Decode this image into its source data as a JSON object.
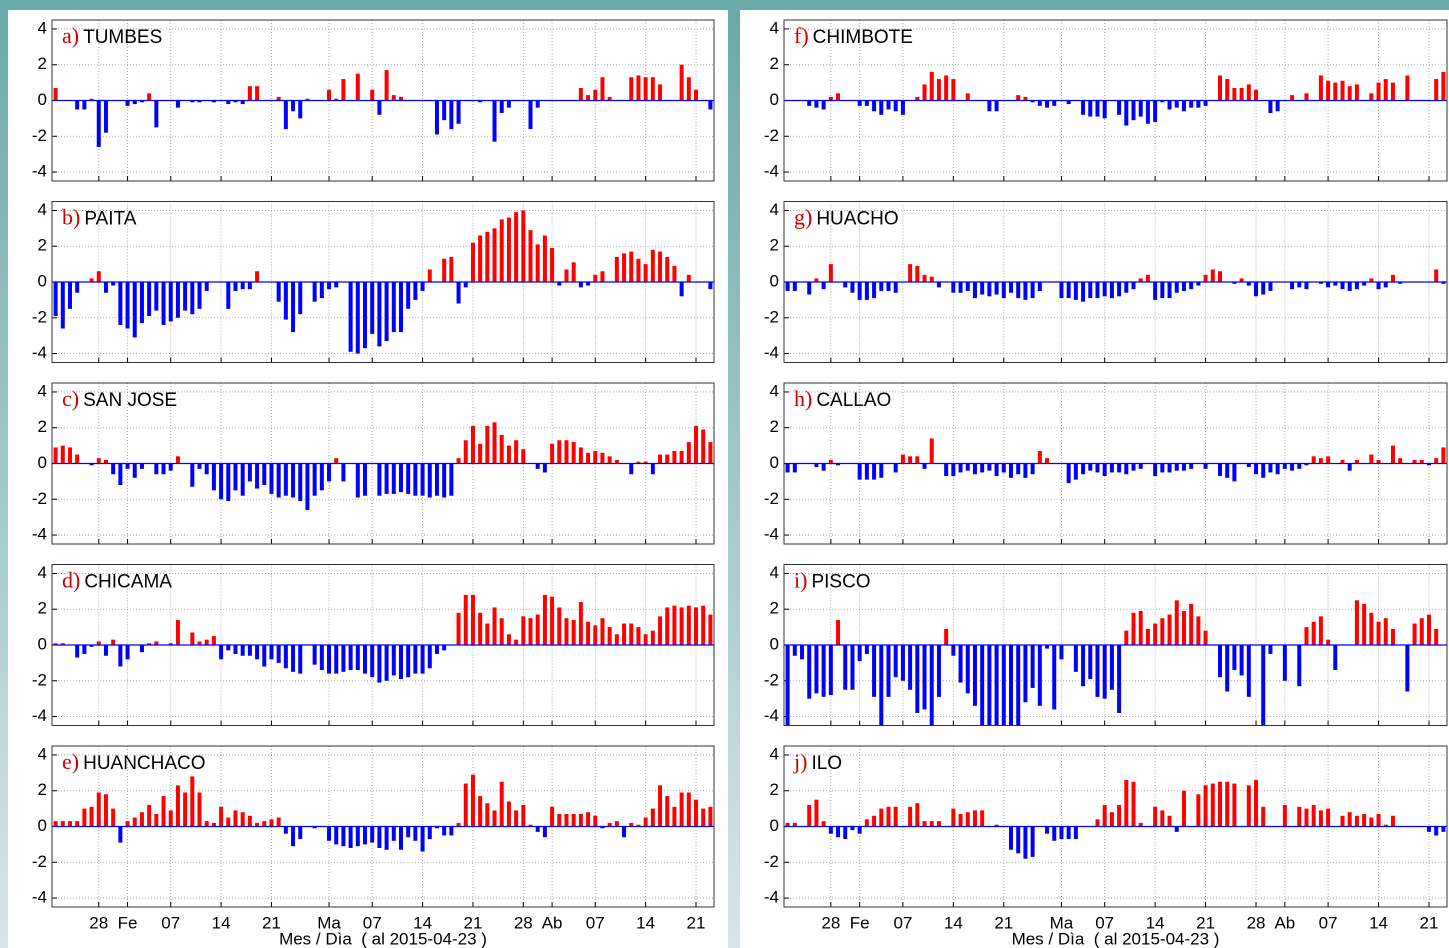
{
  "chart_data": [
    {
      "type": "bar",
      "panel_label": "a)",
      "title": "TUMBES",
      "ylim": [
        -4.5,
        4.5
      ],
      "yticks": [
        -4,
        -2,
        0,
        2,
        4
      ],
      "grid": true,
      "positive_color": "#ff0000",
      "negative_color": "#0000ff",
      "values": [
        0.7,
        0,
        0,
        -0.5,
        -0.5,
        0.1,
        -2.6,
        -1.8,
        0,
        0,
        -0.3,
        -0.2,
        -0.1,
        0.4,
        -1.5,
        0,
        0,
        -0.4,
        0,
        -0.1,
        -0.1,
        0,
        -0.1,
        0,
        -0.2,
        -0.1,
        -0.2,
        0.8,
        0.8,
        0,
        0,
        0.2,
        -1.6,
        -0.6,
        -1.0,
        0.1,
        0,
        0,
        0.6,
        0.1,
        1.2,
        0,
        1.5,
        0,
        0.6,
        -0.8,
        1.7,
        0.3,
        0.2,
        0,
        0,
        0,
        0,
        -1.9,
        -1.1,
        -1.6,
        -1.3,
        0,
        0,
        -0.1,
        0,
        -2.3,
        -0.7,
        -0.4,
        0,
        0,
        -1.6,
        -0.4,
        0,
        0,
        0,
        0,
        0,
        0.7,
        0.3,
        0.6,
        1.3,
        0.2,
        0,
        0,
        1.3,
        1.4,
        1.3,
        1.3,
        0.9,
        0,
        0,
        2.0,
        1.3,
        0.6,
        0,
        -0.5
      ]
    },
    {
      "type": "bar",
      "panel_label": "b)",
      "title": "PAITA",
      "ylim": [
        -4.5,
        4.5
      ],
      "yticks": [
        -4,
        -2,
        0,
        2,
        4
      ],
      "grid": true,
      "positive_color": "#ff0000",
      "negative_color": "#0000ff",
      "values": [
        -1.9,
        -2.6,
        -1.5,
        -0.6,
        0,
        0.2,
        0.6,
        -0.6,
        -0.2,
        -2.4,
        -2.6,
        -3.1,
        -2.3,
        -1.9,
        -1.6,
        -2.4,
        -2.2,
        -2.0,
        -1.6,
        -1.8,
        -1.5,
        -0.5,
        0,
        0,
        -1.5,
        -0.5,
        -0.4,
        -0.4,
        0.6,
        0,
        0,
        -1.1,
        -2.1,
        -2.8,
        -1.8,
        0,
        -1.1,
        -0.9,
        -0.4,
        -0.3,
        0,
        -3.9,
        -4.0,
        -3.7,
        -2.9,
        -3.6,
        -3.3,
        -2.8,
        -2.8,
        -1.5,
        -1.0,
        -0.5,
        0.7,
        0,
        1.3,
        1.4,
        -1.2,
        -0.3,
        2.2,
        2.6,
        2.8,
        3.0,
        3.5,
        3.6,
        3.9,
        4.0,
        2.9,
        2.1,
        2.6,
        1.9,
        -0.2,
        0.7,
        1.1,
        -0.3,
        -0.2,
        0.4,
        0.6,
        0,
        1.4,
        1.6,
        1.7,
        1.3,
        1.0,
        1.8,
        1.7,
        1.4,
        0.9,
        -0.8,
        0.4,
        0,
        0,
        -0.4
      ]
    },
    {
      "type": "bar",
      "panel_label": "c)",
      "title": "SAN JOSE",
      "ylim": [
        -4.5,
        4.5
      ],
      "yticks": [
        -4,
        -2,
        0,
        2,
        4
      ],
      "grid": true,
      "positive_color": "#ff0000",
      "negative_color": "#0000ff",
      "values": [
        0.9,
        1.0,
        0.9,
        0.5,
        0,
        -0.1,
        0.3,
        0.2,
        -0.6,
        -1.2,
        -0.3,
        -0.8,
        -0.3,
        0,
        -0.6,
        -0.6,
        -0.4,
        0.4,
        0,
        -1.3,
        -0.3,
        -0.6,
        -1.5,
        -2.0,
        -2.1,
        -1.5,
        -1.8,
        -1.0,
        -1.4,
        -1.2,
        -1.7,
        -1.9,
        -1.8,
        -1.9,
        -2.1,
        -2.6,
        -1.8,
        -1.5,
        -1.0,
        0.3,
        -1.0,
        0,
        -1.9,
        -1.8,
        0,
        -1.8,
        -1.7,
        -1.7,
        -1.6,
        -1.7,
        -1.8,
        -1.8,
        -1.9,
        -1.8,
        -1.9,
        -1.8,
        0.3,
        1.3,
        2.1,
        1.1,
        2.1,
        2.3,
        1.6,
        1.0,
        1.3,
        0.8,
        0,
        -0.3,
        -0.5,
        1.1,
        1.3,
        1.3,
        1.2,
        0.9,
        0.6,
        0.7,
        0.6,
        0.4,
        0.2,
        0,
        -0.6,
        0.1,
        0.1,
        -0.6,
        0.5,
        0.5,
        0.7,
        0.7,
        1.2,
        2.1,
        1.9,
        1.2
      ]
    },
    {
      "type": "bar",
      "panel_label": "d)",
      "title": "CHICAMA",
      "ylim": [
        -4.5,
        4.5
      ],
      "yticks": [
        -4,
        -2,
        0,
        2,
        4
      ],
      "grid": true,
      "positive_color": "#ff0000",
      "negative_color": "#0000ff",
      "values": [
        0.1,
        0.1,
        0,
        -0.7,
        -0.5,
        -0.1,
        0.2,
        -0.6,
        0.3,
        -1.2,
        -0.8,
        0,
        -0.4,
        0.1,
        0.2,
        0,
        0.1,
        1.4,
        0,
        0.7,
        0.2,
        0.3,
        0.5,
        -0.8,
        -0.3,
        -0.5,
        -0.6,
        -0.6,
        -0.8,
        -1.2,
        -0.8,
        -1.0,
        -1.3,
        -1.5,
        -1.6,
        0,
        -1.1,
        -1.4,
        -1.6,
        -1.6,
        -1.5,
        -1.4,
        -1.4,
        -1.6,
        -1.8,
        -2.1,
        -2.0,
        -1.7,
        -1.9,
        -1.8,
        -1.6,
        -1.6,
        -1.3,
        -0.5,
        -0.3,
        0,
        1.8,
        2.8,
        2.8,
        1.8,
        1.2,
        2.1,
        1.5,
        0.6,
        0.3,
        1.6,
        1.5,
        1.7,
        2.8,
        2.7,
        2.1,
        1.5,
        1.4,
        2.4,
        1.3,
        1.1,
        1.5,
        1.0,
        0.6,
        1.2,
        1.2,
        1.0,
        0.6,
        0.8,
        1.6,
        2.1,
        2.2,
        2.1,
        2.2,
        2.1,
        2.2,
        1.7
      ]
    },
    {
      "type": "bar",
      "panel_label": "e)",
      "title": "HUANCHACO",
      "ylim": [
        -4.5,
        4.5
      ],
      "yticks": [
        -4,
        -2,
        0,
        2,
        4
      ],
      "grid": true,
      "positive_color": "#ff0000",
      "negative_color": "#0000ff",
      "xlabel": "Mes / Dìa  ( al 2015-04-23 )",
      "categories": [
        null,
        null,
        null,
        null,
        null,
        null,
        "28",
        null,
        null,
        null,
        "Fe",
        null,
        null,
        null,
        null,
        null,
        "07",
        null,
        null,
        null,
        null,
        null,
        null,
        "14",
        null,
        null,
        null,
        null,
        null,
        null,
        "21",
        null,
        null,
        null,
        null,
        null,
        null,
        null,
        "Ma",
        null,
        null,
        null,
        null,
        null,
        "07",
        null,
        null,
        null,
        null,
        null,
        null,
        "14",
        null,
        null,
        null,
        null,
        null,
        null,
        "21",
        null,
        null,
        null,
        null,
        null,
        null,
        "28",
        null,
        null,
        null,
        "Ab",
        null,
        null,
        null,
        null,
        null,
        "07",
        null,
        null,
        null,
        null,
        null,
        null,
        "14",
        null,
        null,
        null,
        null,
        null,
        null,
        "21",
        null,
        null
      ],
      "values": [
        0.3,
        0.3,
        0.3,
        0.3,
        1.0,
        1.1,
        1.9,
        1.8,
        1.0,
        -0.9,
        0.3,
        0.5,
        0.8,
        1.2,
        0.7,
        1.7,
        0.9,
        2.3,
        1.9,
        2.8,
        1.9,
        0.3,
        0.2,
        1.1,
        0.5,
        0.9,
        0.8,
        0.6,
        0.2,
        0.3,
        0.4,
        0.5,
        -0.4,
        -1.1,
        -0.7,
        0,
        -0.1,
        0,
        -0.8,
        -1.0,
        -1.1,
        -1.2,
        -1.1,
        -1.0,
        -0.9,
        -1.2,
        -1.3,
        -0.8,
        -1.3,
        -0.6,
        -0.8,
        -1.4,
        -0.7,
        -0.1,
        -0.5,
        -0.5,
        0.2,
        2.4,
        2.9,
        1.7,
        1.3,
        0.9,
        2.5,
        1.4,
        0.9,
        1.2,
        0.1,
        -0.3,
        -0.6,
        1.1,
        0.7,
        0.7,
        0.7,
        0.7,
        0.8,
        0.6,
        -0.1,
        0.2,
        0.3,
        -0.6,
        0.2,
        0.1,
        0.5,
        1.0,
        2.3,
        1.7,
        1.1,
        1.9,
        1.9,
        1.5,
        1.0,
        1.1
      ]
    },
    {
      "type": "bar",
      "panel_label": "f)",
      "title": "CHIMBOTE",
      "ylim": [
        -4.5,
        4.5
      ],
      "yticks": [
        -4,
        -2,
        0,
        2,
        4
      ],
      "grid": true,
      "positive_color": "#ff0000",
      "negative_color": "#0000ff",
      "values": [
        0,
        0,
        0,
        -0.3,
        -0.4,
        -0.5,
        0.2,
        0.4,
        0,
        0,
        -0.3,
        -0.3,
        -0.6,
        -0.8,
        -0.5,
        -0.6,
        -0.8,
        0,
        0.2,
        0.9,
        1.6,
        1.2,
        1.4,
        1.2,
        0,
        0.4,
        0,
        0,
        -0.6,
        -0.6,
        0,
        0,
        0.3,
        0.2,
        -0.1,
        -0.3,
        -0.4,
        -0.3,
        0,
        -0.2,
        0,
        -0.8,
        -0.9,
        -0.9,
        -1.0,
        0,
        -0.8,
        -1.4,
        -1.1,
        -0.9,
        -1.3,
        -1.2,
        -0.1,
        -0.5,
        -0.4,
        -0.6,
        -0.4,
        -0.4,
        -0.3,
        0,
        1.4,
        1.2,
        0.7,
        0.7,
        0.9,
        0.6,
        0,
        -0.7,
        -0.6,
        0,
        0.3,
        0,
        0.4,
        0,
        1.4,
        1.1,
        1.0,
        1.1,
        0.8,
        0.9,
        0,
        0.4,
        1.0,
        1.2,
        1.0,
        0,
        1.4,
        0,
        0,
        0,
        1.2,
        1.6
      ]
    },
    {
      "type": "bar",
      "panel_label": "g)",
      "title": "HUACHO",
      "ylim": [
        -4.5,
        4.5
      ],
      "yticks": [
        -4,
        -2,
        0,
        2,
        4
      ],
      "grid": true,
      "positive_color": "#ff0000",
      "negative_color": "#0000ff",
      "values": [
        -0.5,
        -0.5,
        0,
        -0.7,
        0.2,
        -0.4,
        1.0,
        0,
        -0.3,
        -0.6,
        -1.0,
        -1.0,
        -0.9,
        -0.5,
        -0.5,
        -0.6,
        0,
        1.0,
        0.9,
        0.4,
        0.3,
        -0.3,
        0,
        -0.6,
        -0.6,
        -0.5,
        -0.9,
        -0.7,
        -0.8,
        -0.7,
        -0.9,
        -0.6,
        -0.9,
        -1.0,
        -0.9,
        -0.5,
        0,
        0,
        -0.9,
        -0.9,
        -1.0,
        -1.1,
        -0.9,
        -0.9,
        -0.8,
        -0.9,
        -0.8,
        -0.6,
        -0.4,
        0.2,
        0.4,
        -1.0,
        -0.9,
        -0.9,
        -0.6,
        -0.5,
        -0.4,
        -0.2,
        0.4,
        0.7,
        0.6,
        0,
        -0.1,
        0.2,
        -0.2,
        -0.8,
        -0.7,
        -0.5,
        0,
        0,
        -0.4,
        -0.3,
        -0.4,
        0,
        -0.1,
        -0.3,
        -0.2,
        -0.4,
        -0.5,
        -0.4,
        -0.2,
        0.2,
        -0.4,
        -0.3,
        0.4,
        -0.1,
        0,
        0,
        0,
        0,
        0.7,
        -0.1
      ]
    },
    {
      "type": "bar",
      "panel_label": "h)",
      "title": "CALLAO",
      "ylim": [
        -4.5,
        4.5
      ],
      "yticks": [
        -4,
        -2,
        0,
        2,
        4
      ],
      "grid": true,
      "positive_color": "#ff0000",
      "negative_color": "#0000ff",
      "values": [
        -0.5,
        -0.5,
        0,
        0,
        -0.2,
        -0.4,
        0.2,
        -0.1,
        0,
        0,
        -0.9,
        -0.9,
        -0.9,
        -0.8,
        0,
        -0.5,
        0.5,
        0.4,
        0.4,
        -0.3,
        1.4,
        0,
        -0.7,
        -0.7,
        -0.5,
        -0.4,
        -0.6,
        -0.5,
        -0.4,
        -0.7,
        -0.5,
        -0.8,
        -0.6,
        -0.8,
        -0.6,
        0.7,
        0.3,
        0,
        0,
        -1.1,
        -0.9,
        -0.6,
        -0.4,
        -0.5,
        -0.7,
        -0.5,
        -0.5,
        -0.6,
        -0.4,
        -0.3,
        0,
        -0.7,
        -0.5,
        -0.5,
        -0.4,
        -0.4,
        -0.3,
        0,
        -0.3,
        0,
        -0.7,
        -0.8,
        -1.0,
        0,
        -0.2,
        -0.6,
        -0.8,
        -0.5,
        -0.6,
        -0.3,
        -0.4,
        -0.3,
        -0.1,
        0.4,
        0.3,
        0.4,
        0,
        0.2,
        -0.4,
        0.2,
        0,
        0.5,
        0.2,
        0,
        1.0,
        0.3,
        0,
        0.2,
        0.2,
        -0.1,
        0.3,
        0.9
      ]
    },
    {
      "type": "bar",
      "panel_label": "i)",
      "title": "PISCO",
      "ylim": [
        -4.5,
        4.5
      ],
      "yticks": [
        -4,
        -2,
        0,
        2,
        4
      ],
      "grid": true,
      "positive_color": "#ff0000",
      "negative_color": "#0000ff",
      "values": [
        -4.5,
        -0.6,
        -0.8,
        -3.0,
        -2.7,
        -2.9,
        -2.8,
        1.4,
        -2.5,
        -2.5,
        -0.9,
        -0.5,
        -2.9,
        -4.5,
        -2.9,
        -1.8,
        -2.0,
        -2.5,
        -3.8,
        -3.6,
        -4.5,
        -2.9,
        0.9,
        -0.6,
        -2.1,
        -2.7,
        -3.4,
        -4.5,
        -4.5,
        -4.5,
        -4.5,
        -4.5,
        -4.5,
        -3.2,
        -2.4,
        -3.4,
        -0.2,
        -3.6,
        -0.8,
        0,
        -1.5,
        -2.3,
        -1.9,
        -2.9,
        -3.0,
        -2.5,
        -3.8,
        0.8,
        1.8,
        1.9,
        0.9,
        1.2,
        1.5,
        1.7,
        2.5,
        1.9,
        2.3,
        1.6,
        0.8,
        0,
        -1.8,
        -2.6,
        -1.4,
        -1.7,
        -2.9,
        0,
        -4.5,
        -0.5,
        0,
        -2.0,
        0,
        -2.3,
        1.0,
        1.3,
        1.6,
        0.3,
        -1.4,
        0,
        0,
        2.5,
        2.3,
        1.8,
        1.3,
        1.5,
        0.9,
        0,
        -2.6,
        1.2,
        1.5,
        1.7,
        0.9,
        0
      ]
    },
    {
      "type": "bar",
      "panel_label": "j)",
      "title": "ILO",
      "ylim": [
        -4.5,
        4.5
      ],
      "yticks": [
        -4,
        -2,
        0,
        2,
        4
      ],
      "grid": true,
      "positive_color": "#ff0000",
      "negative_color": "#0000ff",
      "xlabel": "Mes / Dìa  ( al 2015-04-23 )",
      "categories": [
        null,
        null,
        null,
        null,
        null,
        null,
        "28",
        null,
        null,
        null,
        "Fe",
        null,
        null,
        null,
        null,
        null,
        "07",
        null,
        null,
        null,
        null,
        null,
        null,
        "14",
        null,
        null,
        null,
        null,
        null,
        null,
        "21",
        null,
        null,
        null,
        null,
        null,
        null,
        null,
        "Ma",
        null,
        null,
        null,
        null,
        null,
        "07",
        null,
        null,
        null,
        null,
        null,
        null,
        "14",
        null,
        null,
        null,
        null,
        null,
        null,
        "21",
        null,
        null,
        null,
        null,
        null,
        null,
        "28",
        null,
        null,
        null,
        "Ab",
        null,
        null,
        null,
        null,
        null,
        "07",
        null,
        null,
        null,
        null,
        null,
        null,
        "14",
        null,
        null,
        null,
        null,
        null,
        null,
        "21",
        null,
        null
      ],
      "values": [
        0.2,
        0.2,
        0,
        1.2,
        1.5,
        0.3,
        -0.4,
        -0.6,
        -0.7,
        -0.2,
        -0.4,
        0.4,
        0.6,
        1.0,
        1.1,
        1.1,
        0,
        1.1,
        1.3,
        0.3,
        0.3,
        0.3,
        0,
        1.0,
        0.7,
        0.8,
        0.9,
        0.9,
        0,
        0.1,
        0,
        -1.3,
        -1.5,
        -1.8,
        -1.7,
        0,
        -0.4,
        -0.8,
        -0.7,
        -0.7,
        -0.7,
        0,
        0,
        0.4,
        1.2,
        0.8,
        1.2,
        2.6,
        2.5,
        0.2,
        0,
        1.1,
        0.9,
        0.6,
        -0.3,
        2.0,
        0,
        1.8,
        2.3,
        2.4,
        2.5,
        2.5,
        2.4,
        0,
        2.3,
        2.6,
        1.1,
        0,
        0,
        1.2,
        0,
        1.1,
        1.0,
        1.2,
        0.9,
        1.0,
        0,
        0.6,
        0.8,
        0.6,
        0.7,
        0.5,
        0.7,
        0.1,
        0.6,
        0,
        0,
        0,
        0,
        -0.3,
        -0.5,
        -0.3
      ]
    }
  ]
}
